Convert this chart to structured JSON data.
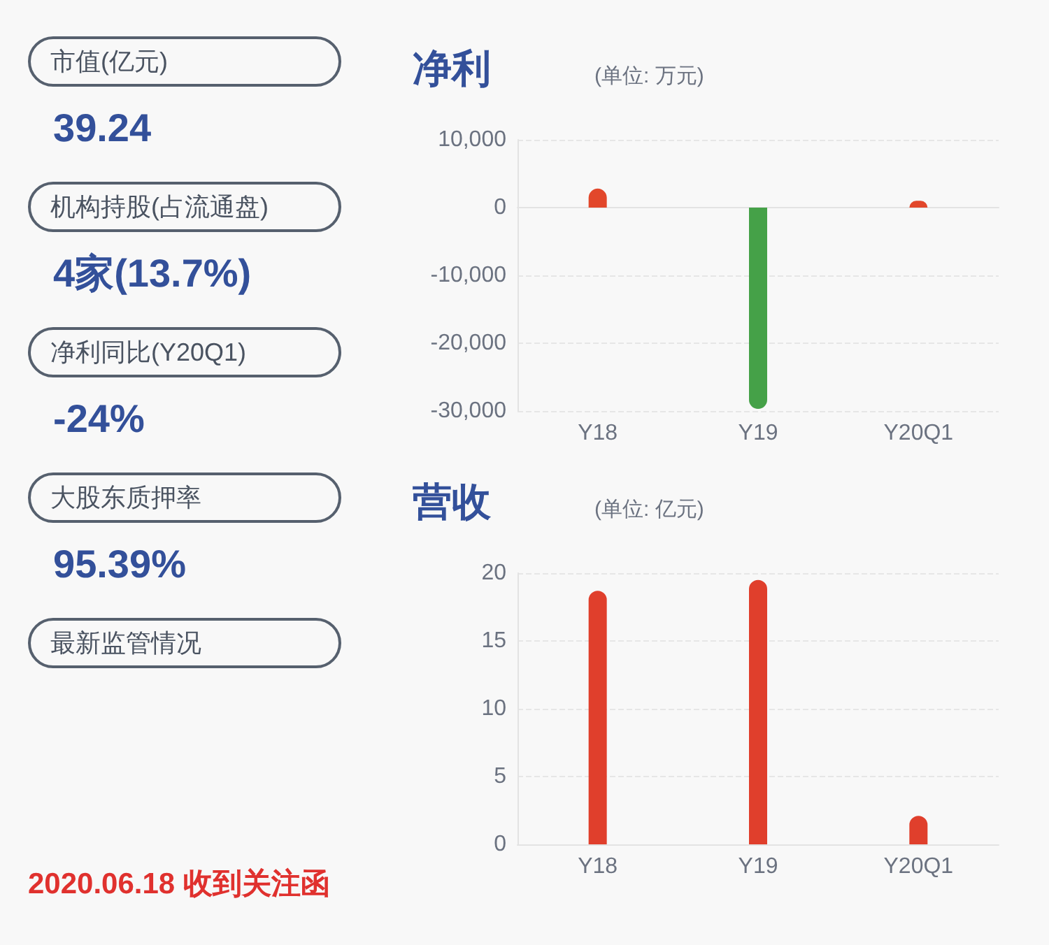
{
  "chart_data": [
    {
      "type": "other",
      "annotations": [
        "市值(亿元)",
        "39.24",
        "机构持股(占流通盘)",
        "4家(13.7%)",
        "净利同比(Y20Q1)",
        "-24%",
        "大股东质押率",
        "95.39%",
        "最新监管情况",
        "2020.06.18 收到关注函"
      ]
    },
    {
      "type": "bar",
      "title": "净利",
      "subtitle": "(单位: 万元)",
      "categories": [
        "Y18",
        "Y19",
        "Y20Q1"
      ],
      "values": [
        2800,
        -29700,
        1000
      ],
      "colors": [
        "#e2472b",
        "#45a148",
        "#e2472b"
      ],
      "ylim": [
        -30000,
        10000
      ],
      "yticks": [
        {
          "value": -30000,
          "label": "-30,000"
        },
        {
          "value": -20000,
          "label": "-20,000"
        },
        {
          "value": -10000,
          "label": "-10,000"
        },
        0,
        {
          "value": 10000,
          "label": "10,000"
        }
      ],
      "grid": "y"
    },
    {
      "type": "bar",
      "title": "营收",
      "subtitle": "(单位: 亿元)",
      "categories": [
        "Y18",
        "Y19",
        "Y20Q1"
      ],
      "values": [
        18.7,
        19.5,
        2.1
      ],
      "colors": [
        "#e03f2c",
        "#e03f2c",
        "#e03f2c"
      ],
      "ylim": [
        0,
        20
      ],
      "yticks": [
        0,
        5,
        10,
        15,
        20
      ],
      "grid": "y"
    }
  ]
}
